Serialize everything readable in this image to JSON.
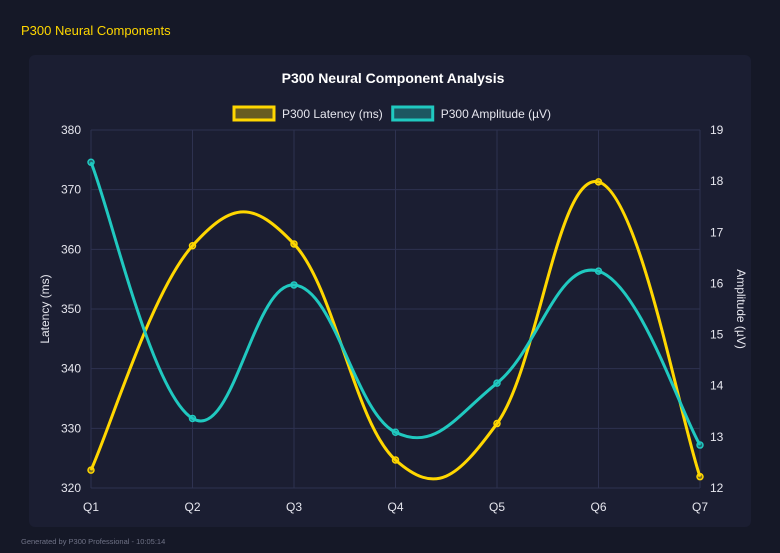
{
  "header": {
    "title": "P300 Neural Components"
  },
  "footer": {
    "text": "Generated by P300 Professional - 10:05:14"
  },
  "chart_data": {
    "type": "line",
    "title": "P300 Neural Component Analysis",
    "categories": [
      "Q1",
      "Q2",
      "Q3",
      "Q4",
      "Q5",
      "Q6",
      "Q7"
    ],
    "series": [
      {
        "name": "P300 Latency (ms)",
        "axis": "left",
        "color": "#FFD700",
        "values": [
          323.0,
          360.6,
          360.9,
          324.7,
          330.8,
          371.3,
          321.9
        ]
      },
      {
        "name": "P300 Amplitude (µV)",
        "axis": "right",
        "color": "#20C9C0",
        "values": [
          18.37,
          13.36,
          15.97,
          13.09,
          14.05,
          16.24,
          12.84
        ]
      }
    ],
    "ylabel": "Latency (ms)",
    "y2label": "Amplitude (µV)",
    "ylim": [
      320,
      380
    ],
    "y2lim": [
      12,
      19
    ],
    "yticks": [
      "320",
      "330",
      "340",
      "350",
      "360",
      "370",
      "380"
    ],
    "y2ticks": [
      "12",
      "13",
      "14",
      "15",
      "16",
      "17",
      "18",
      "19"
    ],
    "grid": true,
    "legend": "top"
  }
}
